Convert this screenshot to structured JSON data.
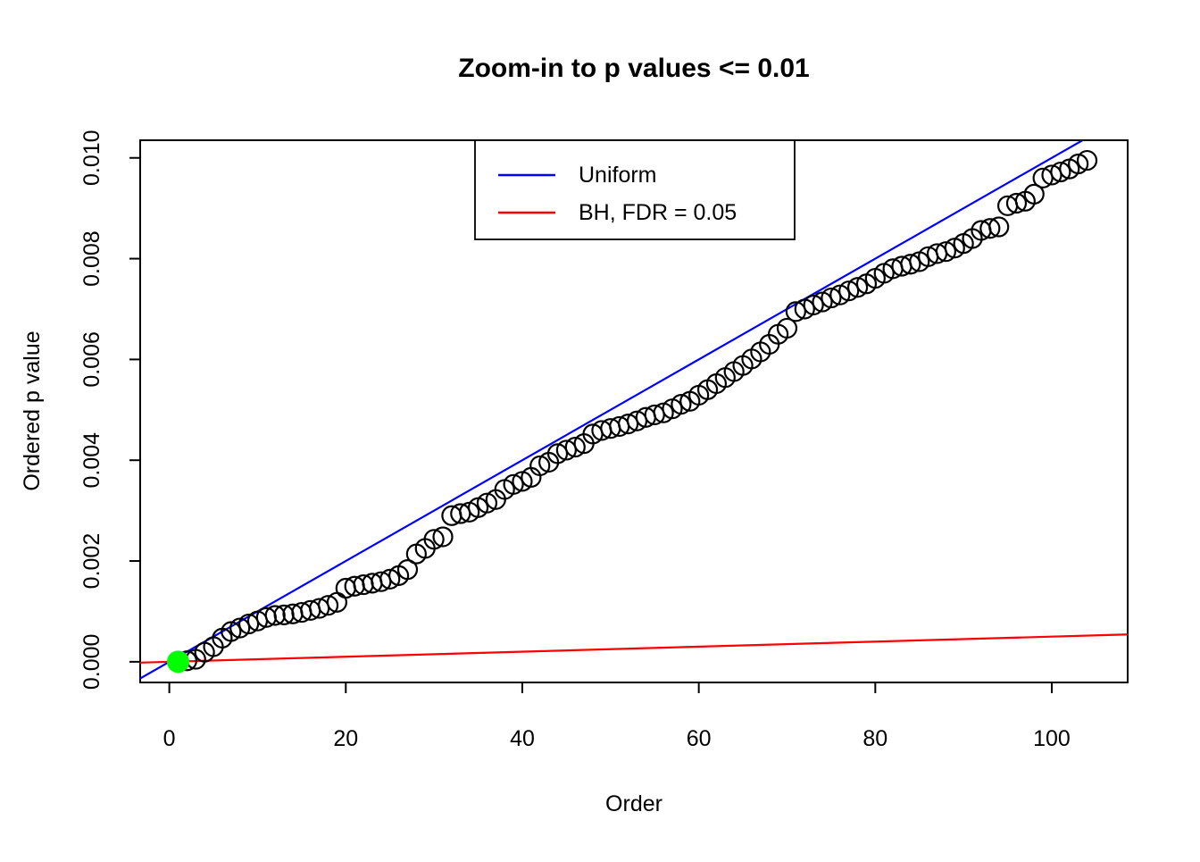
{
  "figure": {
    "background": "#ffffff",
    "frame_color": "#000000"
  },
  "chart_data": {
    "type": "scatter",
    "title": "Zoom-in to p values <= 0.01",
    "xlabel": "Order",
    "ylabel": "Ordered p value",
    "xlim": [
      -3.3,
      108.6
    ],
    "ylim": [
      -0.00041,
      0.01035
    ],
    "x_ticks": [
      0,
      20,
      40,
      60,
      80,
      100
    ],
    "x_tick_labels": [
      "0",
      "20",
      "40",
      "60",
      "80",
      "100"
    ],
    "y_ticks": [
      0,
      0.002,
      0.004,
      0.006,
      0.008,
      0.01
    ],
    "y_tick_labels": [
      "0.000",
      "0.002",
      "0.004",
      "0.006",
      "0.008",
      "0.010"
    ],
    "grid": false,
    "legend": {
      "position": "top-center-right-inside",
      "entries": [
        {
          "label": "Uniform",
          "color": "#0000ff",
          "type": "line"
        },
        {
          "label": "BH, FDR = 0.05",
          "color": "#ff0000",
          "type": "line"
        }
      ]
    },
    "lines": [
      {
        "name": "uniform-line",
        "label": "Uniform",
        "color": "#0000ff",
        "slope": 0.0001,
        "intercept": 0
      },
      {
        "name": "bh-line",
        "label": "BH, FDR = 0.05",
        "color": "#ff0000",
        "slope": 5e-06,
        "intercept": 0
      }
    ],
    "series": [
      {
        "name": "ordered-p-values",
        "marker": "open-circle",
        "color": "#000000",
        "x_first": 1,
        "x_step": 1,
        "y": [
          1e-06,
          2e-05,
          5e-05,
          0.00019,
          0.0003,
          0.00047,
          0.0006,
          0.00067,
          0.00075,
          0.00081,
          0.00088,
          0.00092,
          0.00093,
          0.00095,
          0.00098,
          0.00102,
          0.00106,
          0.00112,
          0.00118,
          0.00146,
          0.0015,
          0.00153,
          0.00156,
          0.00159,
          0.00164,
          0.00171,
          0.00183,
          0.00214,
          0.00225,
          0.00243,
          0.00248,
          0.0029,
          0.00294,
          0.00297,
          0.00306,
          0.00315,
          0.00322,
          0.00342,
          0.00352,
          0.00358,
          0.00366,
          0.00389,
          0.00396,
          0.00413,
          0.0042,
          0.00426,
          0.00433,
          0.00452,
          0.00459,
          0.00463,
          0.00467,
          0.00472,
          0.00478,
          0.00485,
          0.0049,
          0.00494,
          0.00502,
          0.00511,
          0.00517,
          0.00529,
          0.0054,
          0.00552,
          0.00564,
          0.00576,
          0.00588,
          0.00601,
          0.00615,
          0.0063,
          0.0065,
          0.00662,
          0.00695,
          0.007,
          0.00708,
          0.00714,
          0.00722,
          0.00728,
          0.00736,
          0.00743,
          0.0075,
          0.00761,
          0.00771,
          0.0078,
          0.00785,
          0.00789,
          0.00794,
          0.00804,
          0.0081,
          0.00814,
          0.00821,
          0.0083,
          0.0084,
          0.00856,
          0.0086,
          0.00863,
          0.00905,
          0.0091,
          0.00914,
          0.00928,
          0.0096,
          0.00966,
          0.00972,
          0.00978,
          0.00988,
          0.00995
        ]
      },
      {
        "name": "significant-point",
        "marker": "filled-circle",
        "color": "#00ff00",
        "x": [
          1
        ],
        "y": [
          1e-06
        ]
      }
    ]
  }
}
